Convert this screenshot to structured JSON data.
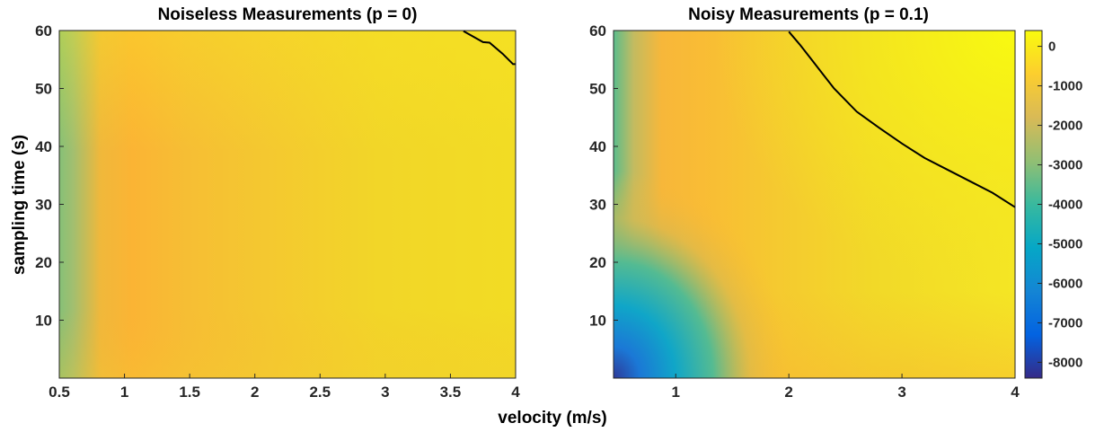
{
  "chart_data": [
    {
      "type": "heatmap",
      "title": "Noiseless Measurements (p = 0)",
      "xlabel": "velocity (m/s)",
      "ylabel": "sampling time (s)",
      "xlim": [
        0.5,
        4
      ],
      "ylim": [
        0,
        60
      ],
      "xticks": [
        "0.5",
        "1",
        "1.5",
        "2",
        "2.5",
        "3",
        "3.5",
        "4"
      ],
      "xtick_values": [
        0.5,
        1,
        1.5,
        2,
        2.5,
        3,
        3.5,
        4
      ],
      "yticks": [
        "10",
        "20",
        "30",
        "40",
        "50",
        "60"
      ],
      "ytick_values": [
        10,
        20,
        30,
        40,
        50,
        60
      ],
      "contour_level": 0,
      "zero_contour": {
        "x": [
          3.6,
          3.75,
          3.8,
          3.9,
          3.98,
          4.0
        ],
        "y": [
          59.9,
          58,
          57.9,
          56,
          54.2,
          54.2
        ]
      }
    },
    {
      "type": "heatmap",
      "title": "Noisy Measurements (p = 0.1)",
      "xlim": [
        0.45,
        4
      ],
      "ylim": [
        0,
        60
      ],
      "xticks": [
        "1",
        "2",
        "3",
        "4"
      ],
      "xtick_values": [
        1,
        2,
        3,
        4
      ],
      "yticks": [
        "10",
        "20",
        "30",
        "40",
        "50",
        "60"
      ],
      "ytick_values": [
        10,
        20,
        30,
        40,
        50,
        60
      ],
      "contour_level": 0,
      "zero_contour": {
        "x": [
          2.0,
          2.1,
          2.2,
          2.3,
          2.4,
          2.6,
          2.8,
          3.0,
          3.2,
          3.4,
          3.6,
          3.8,
          4.0
        ],
        "y": [
          59.8,
          57.5,
          55,
          52.5,
          50,
          46,
          43.2,
          40.5,
          38,
          36,
          34,
          32,
          29.5
        ]
      }
    }
  ],
  "colorbar": {
    "range": [
      -8400,
      400
    ],
    "ticks": [
      "0",
      "-1000",
      "-2000",
      "-3000",
      "-4000",
      "-5000",
      "-6000",
      "-7000",
      "-8000"
    ],
    "tick_values": [
      0,
      -1000,
      -2000,
      -3000,
      -4000,
      -5000,
      -6000,
      -7000,
      -8000
    ],
    "colormap": "parula",
    "stops": [
      "#352a87",
      "#0363e1",
      "#1485d4",
      "#06a7c6",
      "#38b99e",
      "#92bf73",
      "#d9ba56",
      "#fcce2e",
      "#f9fb0e"
    ]
  }
}
